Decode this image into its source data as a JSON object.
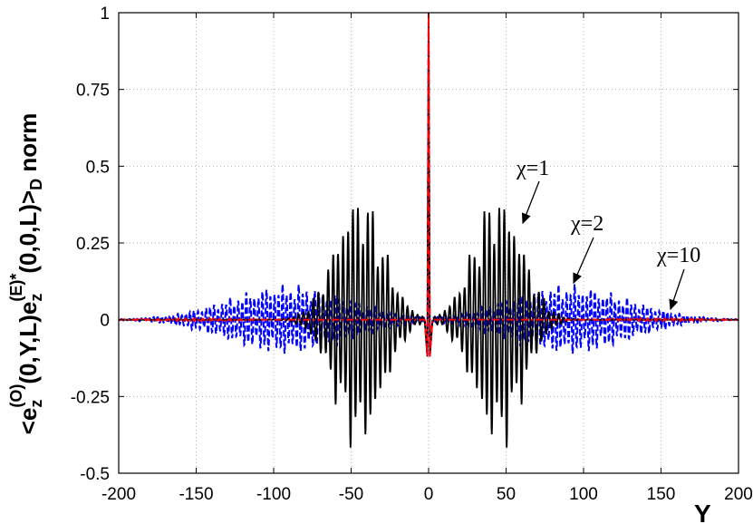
{
  "chart_data": {
    "type": "line",
    "title": "",
    "xlabel": "Y",
    "ylabel": {
      "prefix": "<e",
      "sub1": "z",
      "sup1": "(O)",
      "mid": "(0,Y,L)e",
      "sub2": "z",
      "sup2": "(E)*",
      "mid2": "(0,0,L)>",
      "sub3": "D",
      "suffix": " norm"
    },
    "xlim": [
      -200,
      200
    ],
    "ylim": [
      -0.5,
      1
    ],
    "xticks": [
      -200,
      -150,
      -100,
      -50,
      0,
      50,
      100,
      150,
      200
    ],
    "xtick_labels": [
      "-200",
      "-150",
      "-100",
      "-50",
      "0",
      "50",
      "100",
      "150",
      "200"
    ],
    "yticks": [
      -0.5,
      -0.25,
      0,
      0.25,
      0.5,
      0.75,
      1
    ],
    "ytick_labels": [
      "-0.5",
      "-0.25",
      "0",
      "0.25",
      "0.5",
      "0.75",
      "1"
    ],
    "grid": true,
    "series": [
      {
        "color": "#000000",
        "style": "solid",
        "annotation": "χ=1",
        "peak": 1,
        "envelope_center": 45,
        "envelope_width": 22,
        "envelope_amp": 0.45,
        "period": 3.2
      },
      {
        "color": "#0000ff",
        "style": "dashed",
        "annotation": "χ=2",
        "peak": 1,
        "envelope_center": 90,
        "envelope_width": 55,
        "envelope_amp": 0.12,
        "period": 2.6
      },
      {
        "color": "#ff0000",
        "style": "dashdot",
        "annotation": "χ=10",
        "peak": 1,
        "envelope_center": 150,
        "envelope_width": 40,
        "envelope_amp": 0.005,
        "period": 2.2
      }
    ]
  }
}
